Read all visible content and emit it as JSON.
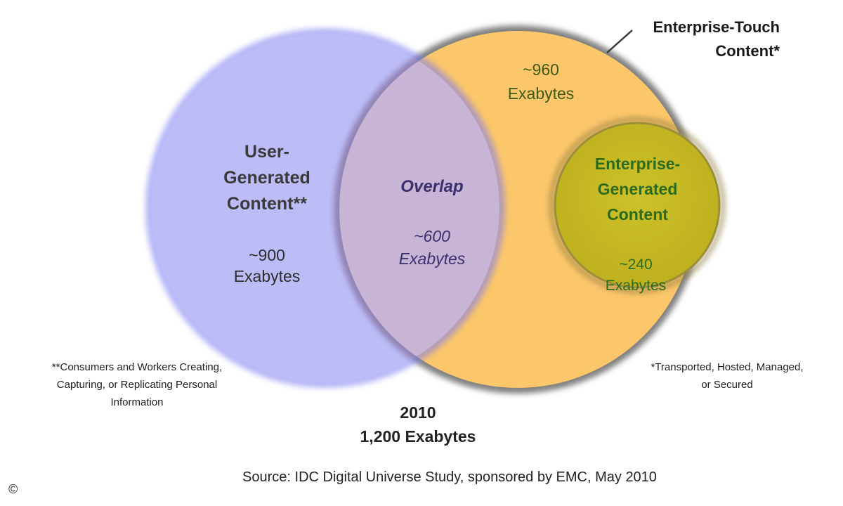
{
  "diagram": {
    "type": "venn",
    "year_label": "2010",
    "total_label": "1,200 Exabytes",
    "sets": {
      "user_generated": {
        "title_lines": [
          "User-",
          "Generated",
          "Content**"
        ],
        "value": "~900",
        "unit": "Exabytes",
        "color": "#bcbcf6"
      },
      "overlap": {
        "title": "Overlap",
        "value": "~600",
        "unit": "Exabytes",
        "color": "#c8b4d4"
      },
      "enterprise_touch": {
        "callout_lines": [
          "Enterprise-Touch",
          "Content*"
        ],
        "value": "~960",
        "unit": "Exabytes",
        "color": "#fcc66a"
      },
      "enterprise_generated": {
        "title_lines": [
          "Enterprise-",
          "Generated",
          "Content"
        ],
        "value": "~240",
        "unit": "Exabytes",
        "color": "#c9be24"
      }
    },
    "footnotes": {
      "user_generated": "**Consumers and Workers Creating, Capturing, or Replicating Personal Information",
      "enterprise_touch": "*Transported, Hosted, Managed, or Secured"
    },
    "source": "Source:  IDC Digital Universe Study, sponsored by EMC, May 2010",
    "copyright_symbol": "©"
  }
}
